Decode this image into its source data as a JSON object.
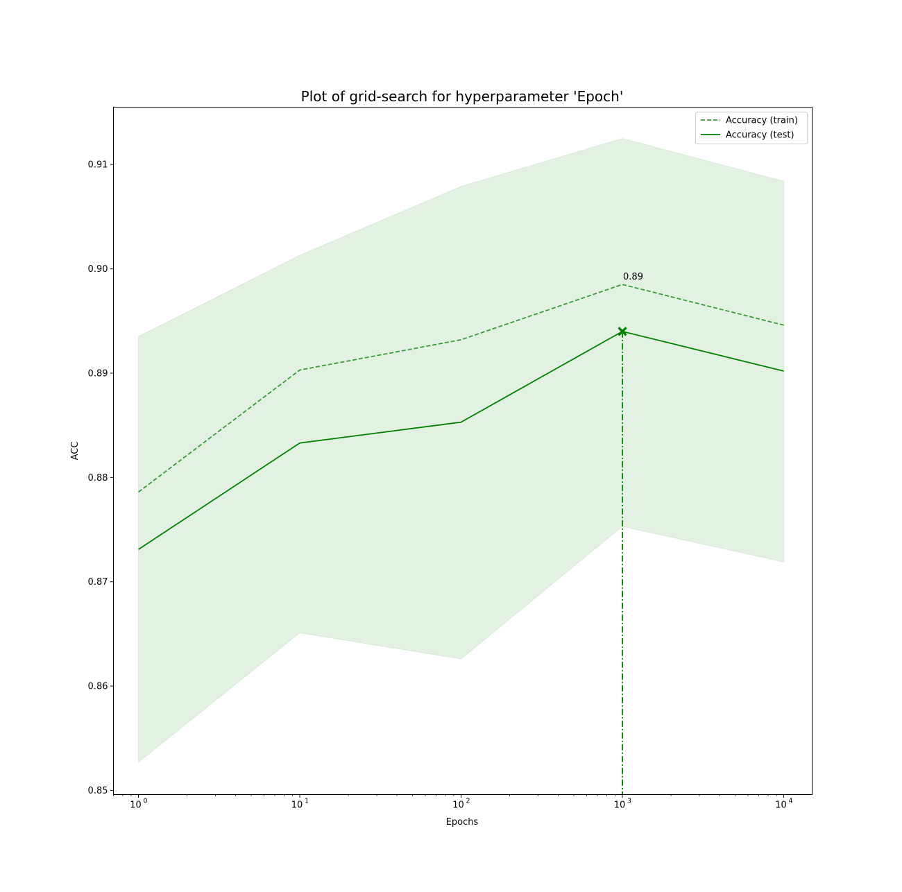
{
  "chart_data": {
    "type": "line",
    "title": "Plot of grid-search for hyperparameter 'Epoch'",
    "xlabel": "Epochs",
    "ylabel": "ACC",
    "xscale": "log",
    "xlim": [
      0.7,
      15000
    ],
    "ylim": [
      0.8496,
      0.9155
    ],
    "x": [
      1,
      10,
      100,
      1000,
      10000
    ],
    "xtick_values": [
      1,
      10,
      100,
      1000,
      10000
    ],
    "xtick_labels": [
      {
        "base": "10",
        "exp": "0"
      },
      {
        "base": "10",
        "exp": "1"
      },
      {
        "base": "10",
        "exp": "2"
      },
      {
        "base": "10",
        "exp": "3"
      },
      {
        "base": "10",
        "exp": "4"
      }
    ],
    "yticks": [
      0.85,
      0.86,
      0.87,
      0.88,
      0.89,
      0.9,
      0.91
    ],
    "ytick_labels": [
      "0.85",
      "0.86",
      "0.87",
      "0.88",
      "0.89",
      "0.90",
      "0.91"
    ],
    "series": [
      {
        "name": "Accuracy (train)",
        "style": "dashed",
        "color": "#3a9a3a",
        "values": [
          0.8786,
          0.8903,
          0.8932,
          0.8985,
          0.8946
        ]
      },
      {
        "name": "Accuracy (test)",
        "style": "solid",
        "color": "#008000",
        "values": [
          0.8731,
          0.8833,
          0.8853,
          0.894,
          0.8902
        ]
      }
    ],
    "band": {
      "color": "#008000",
      "lower": [
        0.8527,
        0.8651,
        0.8626,
        0.8753,
        0.8719
      ],
      "upper": [
        0.8935,
        0.9013,
        0.9079,
        0.9125,
        0.9084
      ]
    },
    "best": {
      "x": 1000,
      "y": 0.894,
      "marker": "x",
      "annotation": "0.89",
      "annotation_y": 0.8985
    },
    "grid": false,
    "legend_position": "top-right"
  }
}
